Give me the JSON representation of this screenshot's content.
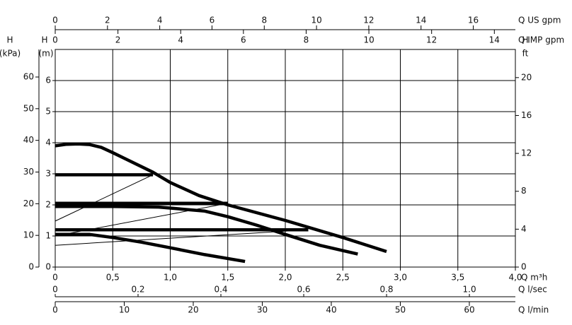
{
  "chart_data": {
    "type": "line",
    "x_label": "Q m³h",
    "xlim": [
      0,
      4
    ],
    "xticks": [
      0,
      {
        "value": 0.5,
        "label": "0,5"
      },
      {
        "value": 1,
        "label": "1,0"
      },
      {
        "value": 1.5,
        "label": "1,5"
      },
      {
        "value": 2,
        "label": "2,0"
      },
      {
        "value": 2.5,
        "label": "2,5"
      },
      {
        "value": 3,
        "label": "3,0"
      },
      {
        "value": 3.5,
        "label": "3,5"
      },
      {
        "value": 4,
        "label": "4,0"
      }
    ],
    "y_label": "H",
    "y_unit": "(m)",
    "ylim": [
      0,
      7
    ],
    "yticks": [
      0,
      1,
      2,
      3,
      4,
      5,
      6
    ],
    "grid": true,
    "extra_axes": [
      {
        "position": "top",
        "label": "Q US gpm",
        "lim": [
          0,
          17.61
        ],
        "ticks": [
          0,
          2,
          4,
          6,
          8,
          10,
          12,
          14,
          16
        ]
      },
      {
        "position": "top-inner",
        "label": "Q IMP gpm",
        "lim": [
          0,
          14.67
        ],
        "ticks": [
          0,
          2,
          4,
          6,
          8,
          10,
          12,
          14
        ]
      },
      {
        "position": "bottom",
        "label": "Q l/sec",
        "lim": [
          0,
          1.111
        ],
        "ticks": [
          0,
          0.2,
          0.4,
          0.6,
          0.8,
          {
            "value": 1,
            "label": "1.0"
          }
        ]
      },
      {
        "position": "bottom-outer",
        "label": "Q l/min",
        "lim": [
          0,
          66.67
        ],
        "ticks": [
          0,
          10,
          20,
          30,
          40,
          50,
          60
        ]
      },
      {
        "position": "left",
        "label": "H",
        "unit": "(kPa)",
        "lim": [
          0,
          68.7
        ],
        "ticks": [
          0,
          10,
          20,
          30,
          40,
          50,
          60
        ]
      },
      {
        "position": "right",
        "label": "H",
        "unit": "ft",
        "lim": [
          0,
          22.97
        ],
        "ticks": [
          0,
          4,
          8,
          12,
          16,
          20
        ]
      }
    ],
    "series": [
      {
        "color": "#000000",
        "width": "thick",
        "x": [
          0,
          0.1,
          0.2,
          0.3,
          0.4,
          0.5,
          0.6,
          0.85,
          1.0,
          1.25,
          1.5,
          2.0,
          2.5,
          2.88
        ],
        "values": [
          3.9,
          3.95,
          3.96,
          3.94,
          3.85,
          3.68,
          3.5,
          3.05,
          2.72,
          2.3,
          2.0,
          1.5,
          0.95,
          0.5
        ]
      },
      {
        "color": "#000000",
        "width": "thick",
        "x": [
          0,
          0.5,
          0.9,
          1.3,
          1.5,
          1.75,
          2.0,
          2.3,
          2.63
        ],
        "values": [
          1.95,
          1.95,
          1.93,
          1.8,
          1.62,
          1.35,
          1.05,
          0.7,
          0.42
        ]
      },
      {
        "color": "#000000",
        "width": "thick",
        "x": [
          0,
          0.3,
          0.5,
          0.75,
          1.0,
          1.3,
          1.65
        ],
        "values": [
          1.05,
          1.05,
          0.95,
          0.8,
          0.62,
          0.4,
          0.18
        ]
      },
      {
        "color": "#000000",
        "width": "thick",
        "x": [
          0,
          0.85
        ],
        "values": [
          2.97,
          2.97
        ]
      },
      {
        "color": "#000000",
        "width": "thick",
        "x": [
          0,
          1.5
        ],
        "values": [
          2.05,
          2.05
        ]
      },
      {
        "color": "#000000",
        "width": "thick",
        "x": [
          0,
          2.2
        ],
        "values": [
          1.2,
          1.2
        ]
      },
      {
        "color": "#000000",
        "width": "thin",
        "x": [
          0,
          0.85
        ],
        "values": [
          1.48,
          2.97
        ]
      },
      {
        "color": "#000000",
        "width": "thin",
        "x": [
          0,
          1.5
        ],
        "values": [
          1.0,
          2.05
        ]
      },
      {
        "color": "#000000",
        "width": "thin",
        "x": [
          0,
          2.2
        ],
        "values": [
          0.7,
          1.2
        ]
      }
    ]
  }
}
